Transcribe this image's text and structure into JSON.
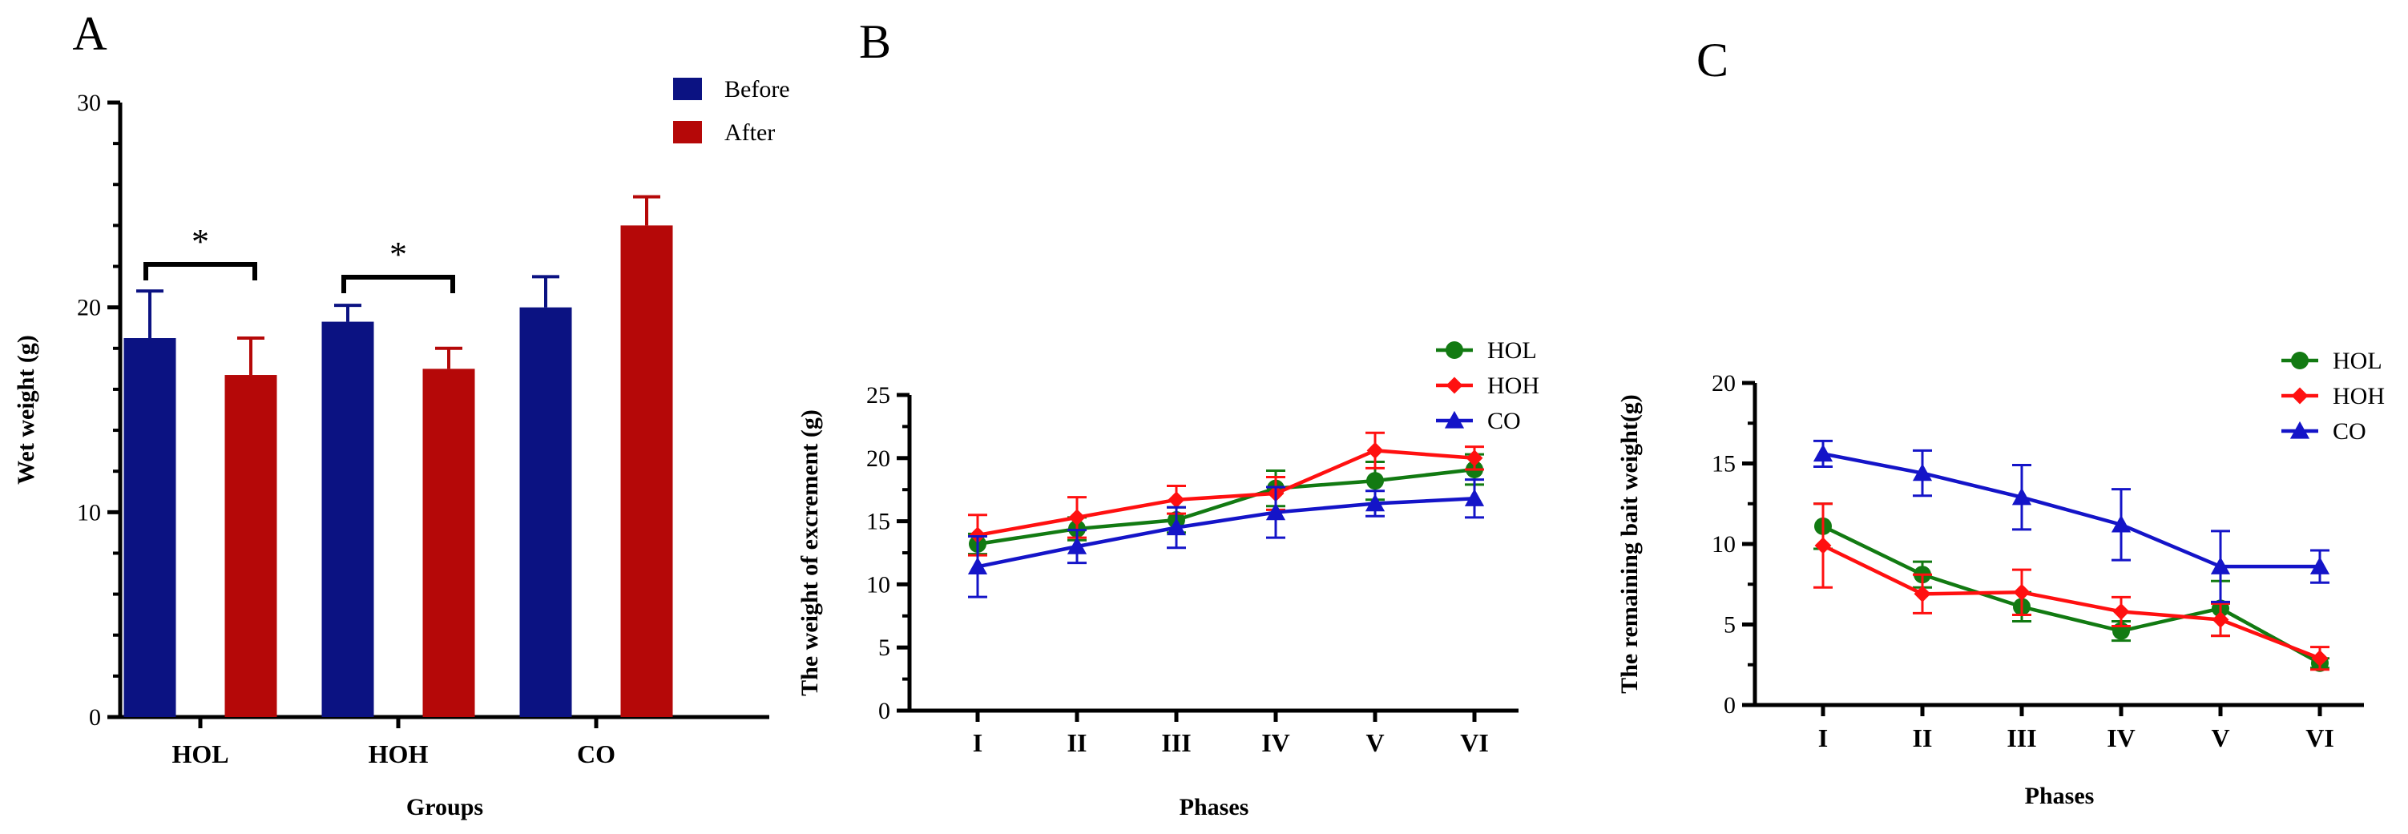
{
  "chart_data": [
    {
      "panel": "A",
      "type": "bar",
      "title": "",
      "xlabel": "Groups",
      "ylabel": "Wet weight (g)",
      "ylim": [
        0,
        30
      ],
      "yticks": [
        0,
        10,
        20,
        30
      ],
      "categories": [
        "HOL",
        "HOH",
        "CO"
      ],
      "series": [
        {
          "name": "Before",
          "color": "#0b1282",
          "values": [
            18.5,
            19.3,
            20.0
          ],
          "errors": [
            2.3,
            0.8,
            1.5
          ]
        },
        {
          "name": "After",
          "color": "#b50808",
          "values": [
            16.7,
            17.0,
            24.0
          ],
          "errors": [
            1.8,
            1.0,
            1.4
          ]
        }
      ],
      "significance": [
        {
          "category": "HOL",
          "label": "*"
        },
        {
          "category": "HOH",
          "label": "*"
        }
      ],
      "legend_position": "top-right"
    },
    {
      "panel": "B",
      "type": "line",
      "title": "",
      "xlabel": "Phases",
      "ylabel": "The weight of excrement (g)",
      "ylim": [
        0,
        25
      ],
      "yticks": [
        0,
        5,
        10,
        15,
        20,
        25
      ],
      "categories": [
        "I",
        "II",
        "III",
        "IV",
        "V",
        "VI"
      ],
      "series": [
        {
          "name": "HOL",
          "color": "#127a12",
          "marker": "circle",
          "values": [
            13.2,
            14.4,
            15.1,
            17.6,
            18.2,
            19.1
          ],
          "errors": [
            0.8,
            0.9,
            1.0,
            1.4,
            1.5,
            1.2
          ]
        },
        {
          "name": "HOH",
          "color": "#ff1010",
          "marker": "diamond",
          "values": [
            13.9,
            15.3,
            16.7,
            17.2,
            20.6,
            20.0
          ],
          "errors": [
            1.6,
            1.6,
            1.1,
            1.3,
            1.4,
            0.9
          ]
        },
        {
          "name": "CO",
          "color": "#1414c8",
          "marker": "triangle",
          "values": [
            11.4,
            13.0,
            14.5,
            15.7,
            16.4,
            16.8
          ],
          "errors": [
            2.4,
            1.3,
            1.6,
            2.0,
            1.0,
            1.5
          ]
        }
      ],
      "legend_position": "right"
    },
    {
      "panel": "C",
      "type": "line",
      "title": "",
      "xlabel": "Phases",
      "ylabel": "The remaining bait weight(g)",
      "ylim": [
        0,
        20
      ],
      "yticks": [
        0,
        5,
        10,
        15,
        20
      ],
      "categories": [
        "I",
        "II",
        "III",
        "IV",
        "V",
        "VI"
      ],
      "series": [
        {
          "name": "HOL",
          "color": "#127a12",
          "marker": "circle",
          "values": [
            11.1,
            8.1,
            6.1,
            4.6,
            6.0,
            2.6
          ],
          "errors": [
            1.4,
            0.8,
            0.9,
            0.6,
            1.7,
            0.3
          ]
        },
        {
          "name": "HOH",
          "color": "#ff1010",
          "marker": "diamond",
          "values": [
            9.9,
            6.9,
            7.0,
            5.8,
            5.3,
            2.9
          ],
          "errors": [
            2.6,
            1.2,
            1.4,
            0.9,
            1.0,
            0.7
          ]
        },
        {
          "name": "CO",
          "color": "#1414c8",
          "marker": "triangle",
          "values": [
            15.6,
            14.4,
            12.9,
            11.2,
            8.6,
            8.6
          ],
          "errors": [
            0.8,
            1.4,
            2.0,
            2.2,
            2.2,
            1.0
          ]
        }
      ],
      "legend_position": "right"
    }
  ]
}
